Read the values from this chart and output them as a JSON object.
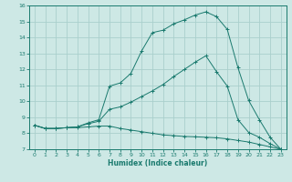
{
  "title": "",
  "xlabel": "Humidex (Indice chaleur)",
  "xlim": [
    -0.5,
    23.5
  ],
  "ylim": [
    7,
    16
  ],
  "xticks": [
    0,
    1,
    2,
    3,
    4,
    5,
    6,
    7,
    8,
    9,
    10,
    11,
    12,
    13,
    14,
    15,
    16,
    17,
    18,
    19,
    20,
    21,
    22,
    23
  ],
  "yticks": [
    7,
    8,
    9,
    10,
    11,
    12,
    13,
    14,
    15,
    16
  ],
  "bg_color": "#cde8e5",
  "line_color": "#1a7a6e",
  "grid_color": "#aacfcc",
  "line1_x": [
    0,
    1,
    2,
    3,
    4,
    5,
    6,
    7,
    8,
    9,
    10,
    11,
    12,
    13,
    14,
    15,
    16,
    17,
    18,
    19,
    20,
    21,
    22,
    23
  ],
  "line1_y": [
    8.5,
    8.3,
    8.3,
    8.35,
    8.35,
    8.4,
    8.45,
    8.45,
    8.3,
    8.2,
    8.1,
    8.0,
    7.9,
    7.85,
    7.8,
    7.78,
    7.75,
    7.72,
    7.65,
    7.55,
    7.45,
    7.3,
    7.15,
    7.0
  ],
  "line2_x": [
    0,
    1,
    2,
    3,
    4,
    5,
    6,
    7,
    8,
    9,
    10,
    11,
    12,
    13,
    14,
    15,
    16,
    17,
    18,
    19,
    20,
    21,
    22,
    23
  ],
  "line2_y": [
    8.5,
    8.3,
    8.3,
    8.35,
    8.4,
    8.6,
    8.75,
    9.5,
    9.65,
    9.95,
    10.3,
    10.65,
    11.05,
    11.55,
    12.0,
    12.45,
    12.85,
    11.85,
    10.95,
    8.85,
    8.05,
    7.75,
    7.35,
    7.0
  ],
  "line3_x": [
    0,
    1,
    2,
    3,
    4,
    5,
    6,
    7,
    8,
    9,
    10,
    11,
    12,
    13,
    14,
    15,
    16,
    17,
    18,
    19,
    20,
    21,
    22,
    23
  ],
  "line3_y": [
    8.5,
    8.3,
    8.3,
    8.35,
    8.4,
    8.65,
    8.85,
    10.95,
    11.15,
    11.75,
    13.15,
    14.3,
    14.45,
    14.85,
    15.1,
    15.4,
    15.6,
    15.3,
    14.5,
    12.1,
    10.05,
    8.85,
    7.75,
    7.0
  ]
}
